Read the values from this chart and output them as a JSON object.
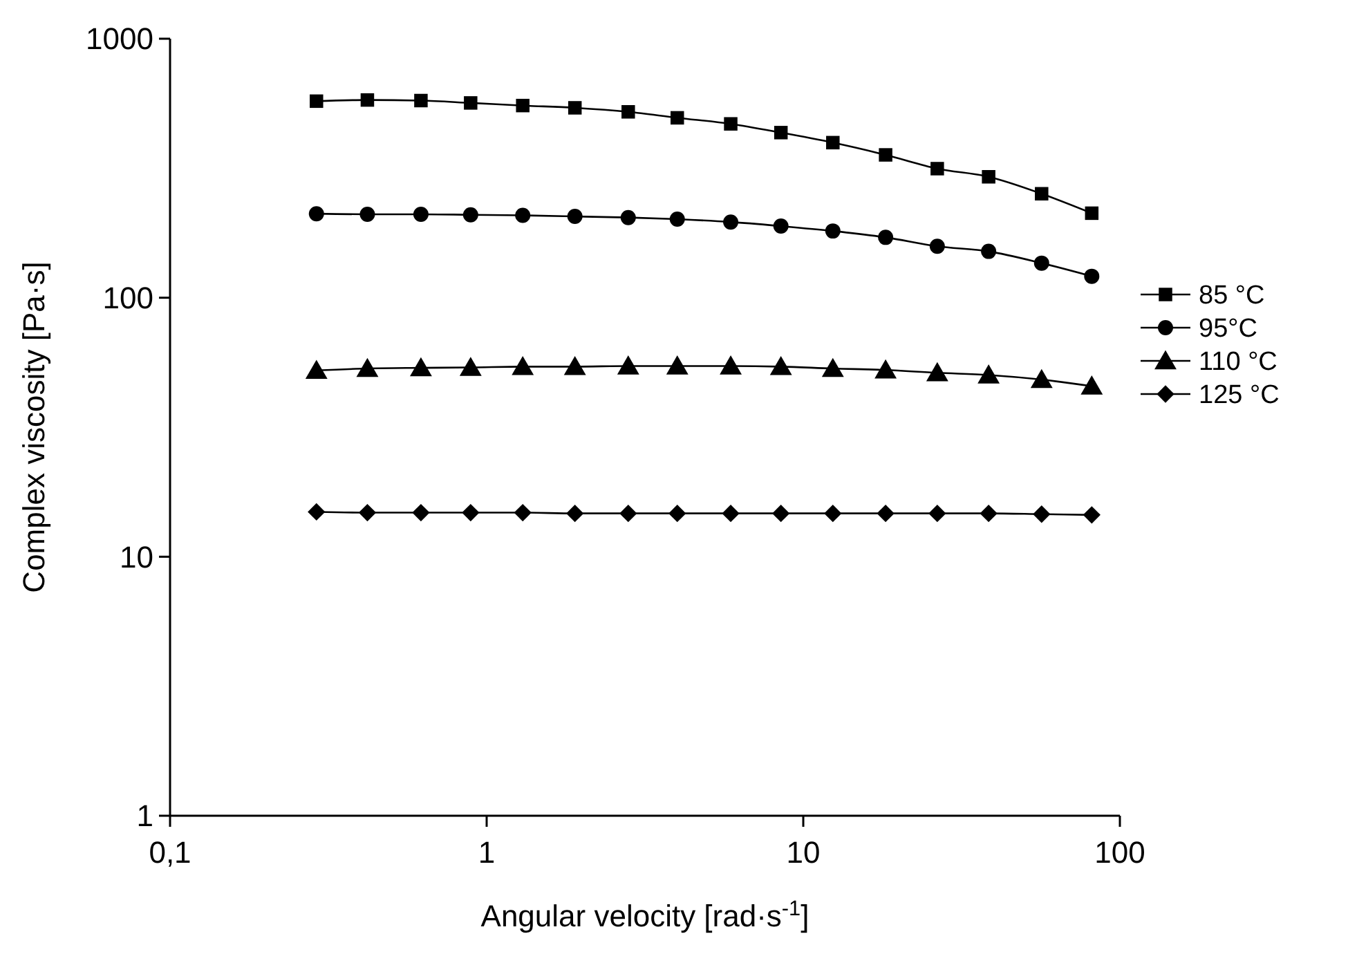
{
  "chart_data": {
    "type": "line",
    "xlabel": "Angular velocity [rad·s$^{-1}$]",
    "ylabel": "Complex viscosity [Pa·s]",
    "x": [
      0.29,
      0.42,
      0.62,
      0.89,
      1.3,
      1.9,
      2.8,
      4.0,
      5.9,
      8.5,
      12.4,
      18.2,
      26.5,
      38.5,
      56.6,
      81.5
    ],
    "series": [
      {
        "name": "85 °C",
        "color": "#000000",
        "marker": "square",
        "values": [
          574,
          580,
          577,
          565,
          552,
          541,
          522,
          495,
          469,
          434,
          397,
          356,
          315,
          293,
          252,
          212
        ]
      },
      {
        "name": "95°C",
        "color": "#000000",
        "marker": "circle",
        "values": [
          211,
          210,
          210,
          209,
          208,
          206,
          204,
          201,
          196,
          189,
          181,
          171,
          158,
          151,
          136,
          121
        ]
      },
      {
        "name": "110 °C",
        "color": "#000000",
        "marker": "triangle",
        "values": [
          52.4,
          53.3,
          53.6,
          53.8,
          54.2,
          54.2,
          54.5,
          54.5,
          54.5,
          54.2,
          53.3,
          52.6,
          51.3,
          50.3,
          48.3,
          45.6
        ]
      },
      {
        "name": "125 °C",
        "color": "#000000",
        "marker": "diamond",
        "values": [
          14.9,
          14.8,
          14.8,
          14.8,
          14.8,
          14.7,
          14.7,
          14.7,
          14.7,
          14.7,
          14.7,
          14.7,
          14.7,
          14.7,
          14.6,
          14.5
        ]
      }
    ],
    "log": "xy",
    "xlim": [
      0.1,
      100
    ],
    "xticks": [
      {
        "value": 0.1,
        "label": "0,1"
      },
      1,
      10,
      100
    ],
    "ylim": [
      1,
      1000
    ],
    "yticks": [
      1,
      10,
      100,
      1000
    ],
    "grid": false,
    "legend": "right",
    "line_style": "solid"
  }
}
